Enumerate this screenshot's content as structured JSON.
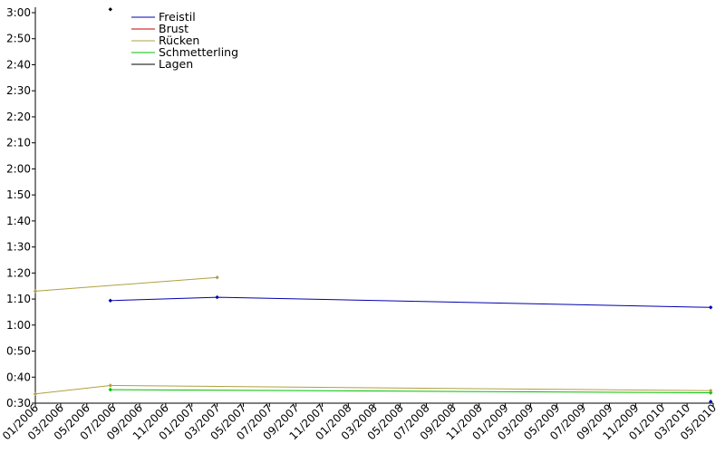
{
  "chart_data": {
    "type": "line",
    "x_axis": {
      "type": "date",
      "min": "2006-01-01",
      "max": "2010-05-01",
      "tick_labels": [
        "01/2006",
        "03/2006",
        "05/2006",
        "07/2006",
        "09/2006",
        "11/2006",
        "01/2007",
        "03/2007",
        "05/2007",
        "07/2007",
        "09/2007",
        "11/2007",
        "01/2008",
        "03/2008",
        "05/2008",
        "07/2008",
        "09/2008",
        "11/2008",
        "01/2009",
        "03/2009",
        "05/2009",
        "07/2009",
        "09/2009",
        "11/2009",
        "01/2010",
        "03/2010",
        "05/2010"
      ]
    },
    "y_axis": {
      "unit": "min:sec",
      "min": "0:30",
      "max": "3:00",
      "tick_labels": [
        "0:30",
        "0:40",
        "0:50",
        "1:00",
        "1:10",
        "1:20",
        "1:30",
        "1:40",
        "1:50",
        "2:00",
        "2:10",
        "2:20",
        "2:30",
        "2:40",
        "2:50",
        "3:00"
      ]
    },
    "legend": {
      "position": "top-left"
    },
    "series": [
      {
        "name": "Freistil",
        "color": "#0000b0",
        "points": [
          {
            "x": "2006-06-25",
            "y": "1:09.4"
          },
          {
            "x": "2007-03-01",
            "y": "1:10.7"
          },
          {
            "x": "2010-04-25",
            "y": "1:06.8"
          }
        ]
      },
      {
        "name": "Brust",
        "color": "#c00000",
        "points": []
      },
      {
        "name": "Rücken",
        "color": "#b0a040",
        "points": [
          {
            "x": "2006-01-01",
            "y": "1:13"
          },
          {
            "x": "2007-03-01",
            "y": "1:18.3"
          }
        ]
      },
      {
        "name": "Schmetterling",
        "color": "#00c000",
        "points": [
          {
            "x": "2006-06-25",
            "y": "0:35.2"
          },
          {
            "x": "2010-04-25",
            "y": "0:34"
          }
        ]
      },
      {
        "name": "Lagen",
        "color": "#000000",
        "points": [
          {
            "x": "2006-06-25",
            "y": "3:01.3"
          }
        ]
      },
      {
        "name": "",
        "color": "#b0a040",
        "points": [
          {
            "x": "2006-01-01",
            "y": "0:33.6"
          },
          {
            "x": "2006-06-25",
            "y": "0:36.8"
          },
          {
            "x": "2010-04-25",
            "y": "0:34.8"
          }
        ]
      },
      {
        "name": "",
        "color": "#0000b0",
        "points": [
          {
            "x": "2010-04-25",
            "y": "0:30.6"
          }
        ]
      }
    ]
  }
}
